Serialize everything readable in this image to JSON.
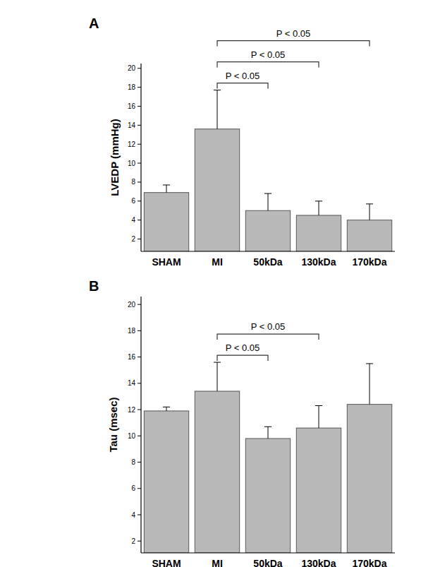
{
  "chart_data": [
    {
      "type": "bar",
      "title": "A",
      "y_label": "LVEDP (mmHg)",
      "categories": [
        "SHAM",
        "MI",
        "50kDa",
        "130kDa",
        "170kDa"
      ],
      "values": [
        6.9,
        13.6,
        5.0,
        4.5,
        4.0
      ],
      "errors": [
        0.8,
        4.1,
        1.8,
        1.5,
        1.7
      ],
      "color": "#b9b9b9",
      "ylim": [
        0.7,
        20.5
      ],
      "yticks": [
        2,
        4,
        6,
        8,
        10,
        12,
        14,
        16,
        18,
        20
      ],
      "grid": false,
      "comparisons": [
        {
          "from": "MI",
          "to": "50kDa",
          "label": "P < 0.05"
        },
        {
          "from": "MI",
          "to": "130kDa",
          "label": "P < 0.05"
        },
        {
          "from": "MI",
          "to": "170kDa",
          "label": "P < 0.05"
        }
      ]
    },
    {
      "type": "bar",
      "title": "B",
      "y_label": "Tau (msec)",
      "categories": [
        "SHAM",
        "MI",
        "50kDa",
        "130kDa",
        "170kDa"
      ],
      "values": [
        11.9,
        13.4,
        9.8,
        10.6,
        12.4
      ],
      "errors": [
        0.3,
        2.2,
        0.9,
        1.7,
        3.1
      ],
      "color": "#b9b9b9",
      "ylim": [
        1.1,
        20.6
      ],
      "yticks": [
        2,
        4,
        6,
        8,
        10,
        12,
        14,
        16,
        18,
        20
      ],
      "grid": false,
      "comparisons": [
        {
          "from": "MI",
          "to": "50kDa",
          "label": "P < 0.05"
        },
        {
          "from": "MI",
          "to": "130kDa",
          "label": "P < 0.05"
        }
      ]
    }
  ]
}
